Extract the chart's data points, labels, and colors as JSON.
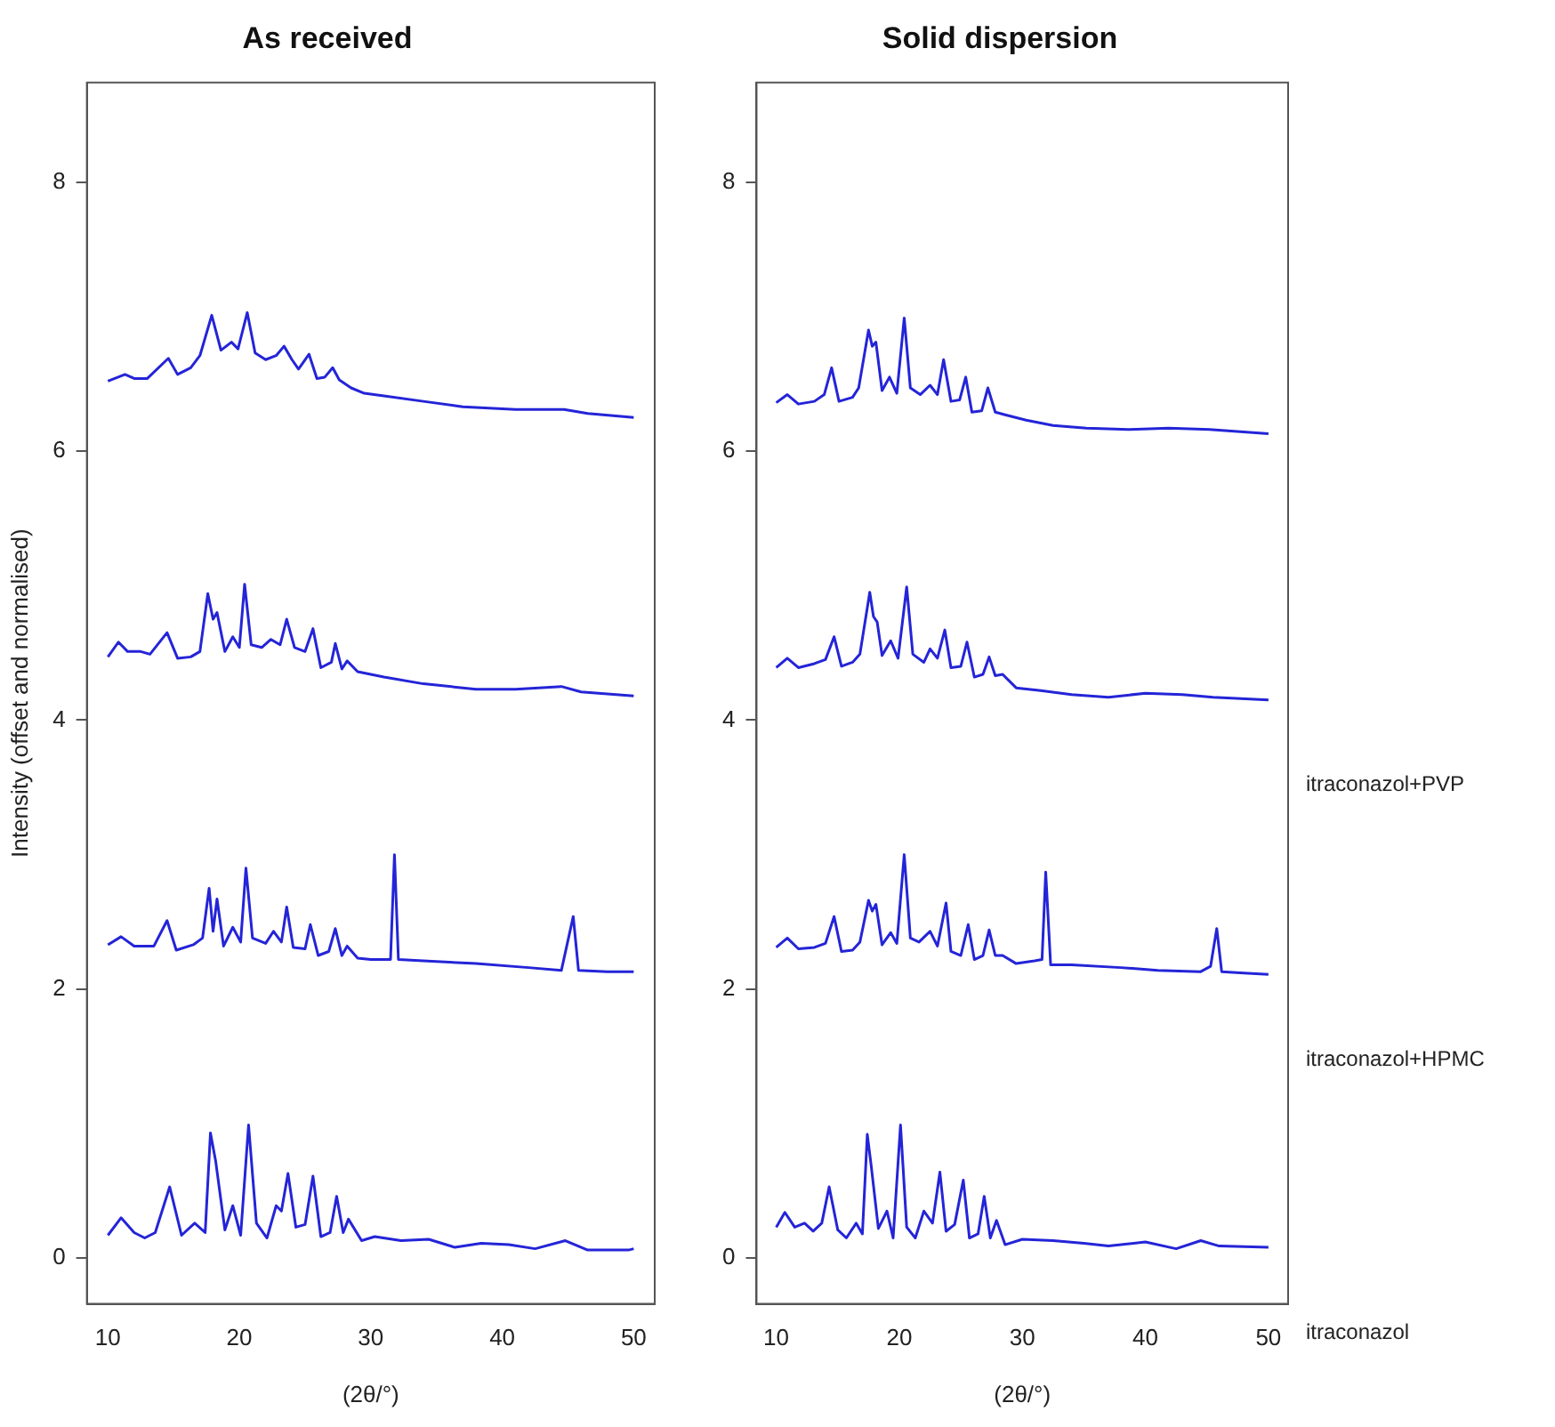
{
  "chart_data": [
    {
      "type": "line",
      "title": "As received",
      "xlabel": "(2θ/°)",
      "ylabel": "Intensity (offset and normalised)",
      "xlim": [
        8.4,
        51.6
      ],
      "xticks": [
        10,
        20,
        30,
        40,
        50
      ],
      "ylim": [
        -0.34,
        8.74
      ],
      "yticks": [
        0,
        2,
        4,
        6,
        8
      ],
      "grid": false,
      "marker": "none",
      "line_style": "solid",
      "series": [
        {
          "color": "#2424d8",
          "x": [
            10,
            11,
            12,
            12.8,
            13.6,
            14.7,
            15.6,
            16.6,
            17.4,
            17.8,
            18.2,
            18.9,
            19.5,
            20.1,
            20.7,
            21.3,
            22.1,
            22.8,
            23.2,
            23.7,
            24.3,
            25.0,
            25.6,
            26.2,
            26.9,
            27.4,
            27.9,
            28.3,
            29.3,
            30.3,
            32.3,
            34.4,
            36.4,
            38.4,
            40.5,
            42.5,
            44.8,
            46.5,
            49.6,
            50
          ],
          "values": [
            0.17,
            0.3,
            0.19,
            0.15,
            0.19,
            0.53,
            0.17,
            0.26,
            0.19,
            0.93,
            0.72,
            0.21,
            0.39,
            0.17,
            0.99,
            0.26,
            0.15,
            0.39,
            0.35,
            0.63,
            0.23,
            0.25,
            0.61,
            0.16,
            0.19,
            0.46,
            0.19,
            0.29,
            0.13,
            0.16,
            0.13,
            0.14,
            0.08,
            0.11,
            0.1,
            0.07,
            0.13,
            0.06,
            0.06,
            0.07
          ]
        },
        {
          "color": "#2424d8",
          "x": [
            10,
            11,
            12,
            13.5,
            14.5,
            15.2,
            16.5,
            17.2,
            17.7,
            18.0,
            18.3,
            18.8,
            19.5,
            20.1,
            20.5,
            21.0,
            22.0,
            22.6,
            23.2,
            23.6,
            24.1,
            25.0,
            25.4,
            26.0,
            26.8,
            27.3,
            27.8,
            28.2,
            29.0,
            30.0,
            31.5,
            31.8,
            32.1,
            34,
            38,
            42,
            44.5,
            45.4,
            45.8,
            48,
            50
          ],
          "values": [
            2.33,
            2.39,
            2.32,
            2.32,
            2.51,
            2.29,
            2.33,
            2.38,
            2.75,
            2.43,
            2.67,
            2.32,
            2.46,
            2.35,
            2.9,
            2.38,
            2.34,
            2.43,
            2.35,
            2.61,
            2.31,
            2.3,
            2.48,
            2.25,
            2.28,
            2.45,
            2.25,
            2.32,
            2.23,
            2.22,
            2.22,
            3.0,
            2.22,
            2.21,
            2.19,
            2.16,
            2.14,
            2.54,
            2.14,
            2.13,
            2.13
          ]
        },
        {
          "color": "#2424d8",
          "x": [
            10,
            10.8,
            11.5,
            12.5,
            13.2,
            14.5,
            15.3,
            16.3,
            17.0,
            17.6,
            18.0,
            18.3,
            18.9,
            19.5,
            20.0,
            20.4,
            20.9,
            21.7,
            22.4,
            23.1,
            23.6,
            24.2,
            25.0,
            25.6,
            26.2,
            27.0,
            27.3,
            27.8,
            28.2,
            29,
            31,
            34,
            38,
            41,
            44.5,
            46,
            50
          ],
          "values": [
            4.47,
            4.58,
            4.51,
            4.51,
            4.49,
            4.65,
            4.46,
            4.47,
            4.51,
            4.94,
            4.75,
            4.8,
            4.51,
            4.62,
            4.54,
            5.01,
            4.56,
            4.54,
            4.6,
            4.56,
            4.75,
            4.54,
            4.51,
            4.68,
            4.39,
            4.43,
            4.57,
            4.38,
            4.44,
            4.36,
            4.32,
            4.27,
            4.23,
            4.23,
            4.25,
            4.21,
            4.18
          ]
        },
        {
          "color": "#2424d8",
          "x": [
            10,
            11.3,
            12,
            13,
            14.6,
            15.3,
            16.3,
            17.0,
            17.9,
            18.6,
            19.4,
            19.9,
            20.6,
            21.2,
            22.0,
            22.8,
            23.4,
            24.0,
            24.5,
            25.3,
            25.9,
            26.5,
            27.1,
            27.6,
            28.5,
            29.5,
            31,
            34,
            37,
            41,
            44.7,
            46.5,
            50
          ],
          "values": [
            6.52,
            6.57,
            6.54,
            6.54,
            6.69,
            6.57,
            6.62,
            6.71,
            7.01,
            6.75,
            6.81,
            6.76,
            7.03,
            6.73,
            6.68,
            6.71,
            6.78,
            6.68,
            6.61,
            6.72,
            6.54,
            6.55,
            6.62,
            6.53,
            6.47,
            6.43,
            6.41,
            6.37,
            6.33,
            6.31,
            6.31,
            6.28,
            6.25
          ]
        }
      ]
    },
    {
      "type": "line",
      "title": "Solid dispersion",
      "xlabel": "(2θ/°)",
      "xlim": [
        8.4,
        51.6
      ],
      "xticks": [
        10,
        20,
        30,
        40,
        50
      ],
      "ylim": [
        -0.34,
        8.74
      ],
      "yticks": [
        0,
        2,
        4,
        6,
        8
      ],
      "grid": false,
      "marker": "none",
      "line_style": "solid",
      "series": [
        {
          "name": "itraconazol",
          "color": "#2424d8",
          "x": [
            10,
            10.7,
            11.5,
            12.3,
            13.0,
            13.7,
            14.3,
            15.0,
            15.7,
            16.5,
            17.0,
            17.4,
            17.7,
            18.3,
            19.0,
            19.5,
            20.1,
            20.6,
            21.3,
            22.0,
            22.7,
            23.3,
            23.8,
            24.5,
            25.2,
            25.7,
            26.4,
            26.9,
            27.4,
            27.9,
            28.6,
            30,
            32.5,
            35,
            37,
            40,
            42.5,
            44.5,
            46,
            50
          ],
          "values": [
            0.23,
            0.34,
            0.23,
            0.26,
            0.2,
            0.26,
            0.53,
            0.21,
            0.15,
            0.26,
            0.18,
            0.92,
            0.7,
            0.22,
            0.35,
            0.15,
            0.99,
            0.23,
            0.15,
            0.35,
            0.26,
            0.64,
            0.2,
            0.25,
            0.58,
            0.15,
            0.18,
            0.46,
            0.15,
            0.28,
            0.1,
            0.14,
            0.13,
            0.11,
            0.09,
            0.12,
            0.07,
            0.13,
            0.09,
            0.08
          ]
        },
        {
          "name": "itraconazol+HPMC",
          "color": "#2424d8",
          "x": [
            10,
            10.9,
            11.8,
            13.1,
            14.0,
            14.7,
            15.3,
            16.2,
            16.8,
            17.5,
            17.8,
            18.1,
            18.6,
            19.3,
            19.8,
            20.4,
            20.9,
            21.6,
            22.5,
            23.1,
            23.8,
            24.2,
            25.0,
            25.6,
            26.1,
            26.8,
            27.3,
            27.8,
            28.4,
            29.5,
            31.0,
            31.6,
            31.9,
            32.3,
            34,
            38,
            41,
            44.5,
            45.3,
            45.8,
            46.2,
            48,
            50
          ],
          "values": [
            2.31,
            2.38,
            2.3,
            2.31,
            2.34,
            2.54,
            2.28,
            2.29,
            2.35,
            2.66,
            2.58,
            2.63,
            2.33,
            2.42,
            2.34,
            3.0,
            2.38,
            2.35,
            2.43,
            2.32,
            2.64,
            2.28,
            2.25,
            2.48,
            2.22,
            2.25,
            2.44,
            2.25,
            2.25,
            2.19,
            2.21,
            2.22,
            2.87,
            2.18,
            2.18,
            2.16,
            2.14,
            2.13,
            2.17,
            2.45,
            2.13,
            2.12,
            2.11
          ]
        },
        {
          "name": "itraconazol+PVP",
          "color": "#2424d8",
          "x": [
            10,
            10.9,
            11.8,
            13.1,
            14.0,
            14.7,
            15.3,
            16.2,
            16.8,
            17.6,
            17.9,
            18.2,
            18.6,
            19.3,
            19.9,
            20.6,
            21.1,
            22.0,
            22.5,
            23.1,
            23.7,
            24.2,
            25.0,
            25.5,
            26.1,
            26.8,
            27.3,
            27.8,
            28.4,
            29.5,
            31.5,
            34,
            37,
            40,
            43,
            45.5,
            50
          ],
          "values": [
            4.39,
            4.46,
            4.39,
            4.42,
            4.45,
            4.62,
            4.4,
            4.43,
            4.49,
            4.95,
            4.77,
            4.73,
            4.48,
            4.59,
            4.46,
            4.99,
            4.49,
            4.43,
            4.53,
            4.46,
            4.67,
            4.39,
            4.4,
            4.58,
            4.32,
            4.34,
            4.47,
            4.33,
            4.34,
            4.24,
            4.22,
            4.19,
            4.17,
            4.2,
            4.19,
            4.17,
            4.15
          ]
        },
        {
          "color": "#2424d8",
          "x": [
            10,
            10.9,
            11.8,
            13.1,
            13.9,
            14.5,
            15.1,
            16.2,
            16.7,
            17.5,
            17.8,
            18.1,
            18.6,
            19.2,
            19.8,
            20.4,
            20.9,
            21.7,
            22.5,
            23.1,
            23.6,
            24.2,
            24.9,
            25.4,
            25.9,
            26.7,
            27.2,
            27.8,
            28.6,
            30.3,
            32.5,
            35.2,
            38.6,
            41.9,
            45.2,
            50
          ],
          "values": [
            6.36,
            6.42,
            6.35,
            6.37,
            6.42,
            6.62,
            6.37,
            6.4,
            6.47,
            6.9,
            6.78,
            6.81,
            6.45,
            6.55,
            6.43,
            6.99,
            6.47,
            6.42,
            6.49,
            6.42,
            6.68,
            6.37,
            6.38,
            6.55,
            6.29,
            6.3,
            6.47,
            6.29,
            6.27,
            6.23,
            6.19,
            6.17,
            6.16,
            6.17,
            6.16,
            6.13
          ]
        }
      ]
    }
  ]
}
